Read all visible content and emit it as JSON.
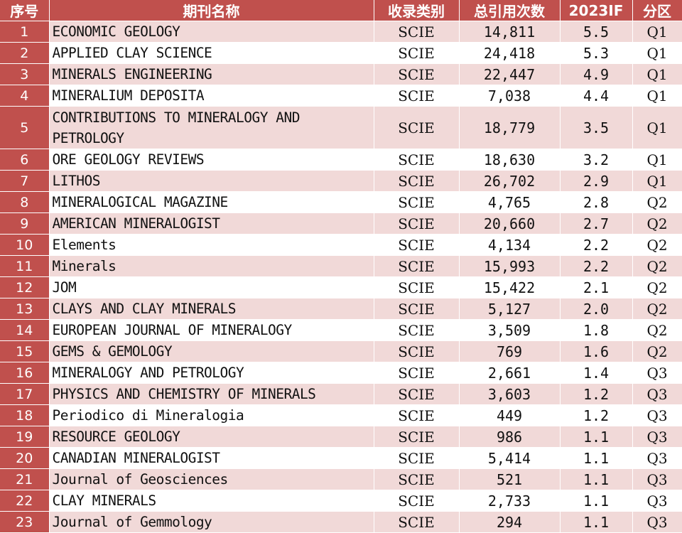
{
  "table": {
    "headers": [
      "序号",
      "期刊名称",
      "收录类别",
      "总引用次数",
      "2023IF",
      "分区"
    ],
    "rows": [
      {
        "num": "1",
        "name": "ECONOMIC GEOLOGY",
        "index": "SCIE",
        "citations": "14,811",
        "if": "5.5",
        "quartile": "Q1"
      },
      {
        "num": "2",
        "name": "APPLIED CLAY SCIENCE",
        "index": "SCIE",
        "citations": "24,418",
        "if": "5.3",
        "quartile": "Q1"
      },
      {
        "num": "3",
        "name": "MINERALS ENGINEERING",
        "index": "SCIE",
        "citations": "22,447",
        "if": "4.9",
        "quartile": "Q1"
      },
      {
        "num": "4",
        "name": "MINERALIUM DEPOSITA",
        "index": "SCIE",
        "citations": "7,038",
        "if": "4.4",
        "quartile": "Q1"
      },
      {
        "num": "5",
        "name": "CONTRIBUTIONS TO MINERALOGY AND PETROLOGY",
        "index": "SCIE",
        "citations": "18,779",
        "if": "3.5",
        "quartile": "Q1"
      },
      {
        "num": "6",
        "name": "ORE GEOLOGY REVIEWS",
        "index": "SCIE",
        "citations": "18,630",
        "if": "3.2",
        "quartile": "Q1"
      },
      {
        "num": "7",
        "name": "LITHOS",
        "index": "SCIE",
        "citations": "26,702",
        "if": "2.9",
        "quartile": "Q1"
      },
      {
        "num": "8",
        "name": "MINERALOGICAL MAGAZINE",
        "index": "SCIE",
        "citations": "4,765",
        "if": "2.8",
        "quartile": "Q2"
      },
      {
        "num": "9",
        "name": "AMERICAN MINERALOGIST",
        "index": "SCIE",
        "citations": "20,660",
        "if": "2.7",
        "quartile": "Q2"
      },
      {
        "num": "10",
        "name": "Elements",
        "index": "SCIE",
        "citations": "4,134",
        "if": "2.2",
        "quartile": "Q2"
      },
      {
        "num": "11",
        "name": "Minerals",
        "index": "SCIE",
        "citations": "15,993",
        "if": "2.2",
        "quartile": "Q2"
      },
      {
        "num": "12",
        "name": "JOM",
        "index": "SCIE",
        "citations": "15,422",
        "if": "2.1",
        "quartile": "Q2"
      },
      {
        "num": "13",
        "name": "CLAYS AND CLAY MINERALS",
        "index": "SCIE",
        "citations": "5,127",
        "if": "2.0",
        "quartile": "Q2"
      },
      {
        "num": "14",
        "name": "EUROPEAN JOURNAL OF MINERALOGY",
        "index": "SCIE",
        "citations": "3,509",
        "if": "1.8",
        "quartile": "Q2"
      },
      {
        "num": "15",
        "name": "GEMS & GEMOLOGY",
        "index": "SCIE",
        "citations": "769",
        "if": "1.6",
        "quartile": "Q2"
      },
      {
        "num": "16",
        "name": "MINERALOGY AND PETROLOGY",
        "index": "SCIE",
        "citations": "2,661",
        "if": "1.4",
        "quartile": "Q3"
      },
      {
        "num": "17",
        "name": "PHYSICS AND CHEMISTRY OF MINERALS",
        "index": "SCIE",
        "citations": "3,603",
        "if": "1.2",
        "quartile": "Q3"
      },
      {
        "num": "18",
        "name": "Periodico di Mineralogia",
        "index": "SCIE",
        "citations": "449",
        "if": "1.2",
        "quartile": "Q3"
      },
      {
        "num": "19",
        "name": "RESOURCE GEOLOGY",
        "index": "SCIE",
        "citations": "986",
        "if": "1.1",
        "quartile": "Q3"
      },
      {
        "num": "20",
        "name": "CANADIAN MINERALOGIST",
        "index": "SCIE",
        "citations": "5,414",
        "if": "1.1",
        "quartile": "Q3"
      },
      {
        "num": "21",
        "name": "Journal of Geosciences",
        "index": "SCIE",
        "citations": "521",
        "if": "1.1",
        "quartile": "Q3"
      },
      {
        "num": "22",
        "name": "CLAY MINERALS",
        "index": "SCIE",
        "citations": "2,733",
        "if": "1.1",
        "quartile": "Q3"
      },
      {
        "num": "23",
        "name": "Journal of Gemmology",
        "index": "SCIE",
        "citations": "294",
        "if": "1.1",
        "quartile": "Q3"
      }
    ]
  },
  "colors": {
    "header_bg": "#c0504d",
    "stripe_bg": "#f1d9d8",
    "plain_bg": "#ffffff"
  }
}
